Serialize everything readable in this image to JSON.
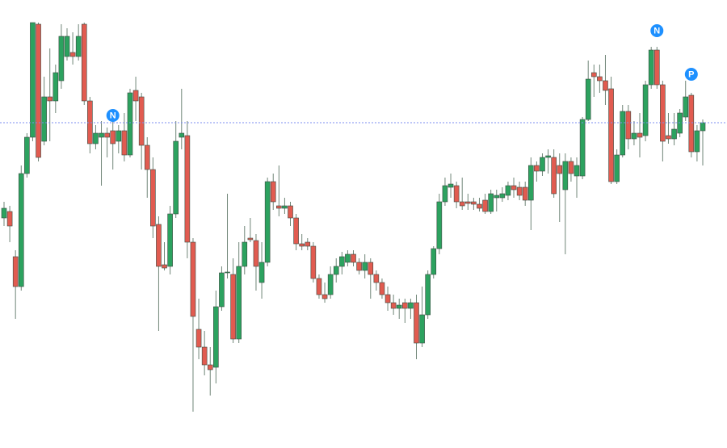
{
  "chart_data": {
    "type": "candlestick",
    "ylim": [
      0,
      555
    ],
    "up_color": "#2ca25f",
    "down_color": "#e15b50",
    "wick_color": "#6f8577",
    "open": [
      285,
      293,
      237,
      200,
      340,
      385,
      525,
      380,
      435,
      430,
      455,
      485,
      490,
      485,
      525,
      430,
      377,
      385,
      390,
      393,
      380,
      393,
      363,
      443,
      435,
      375,
      345,
      277,
      227,
      225,
      290,
      385,
      387,
      255,
      147,
      125,
      103,
      100,
      175,
      217,
      215,
      135,
      225,
      260,
      257,
      205,
      230,
      330,
      300,
      297,
      300,
      285,
      253,
      255,
      250,
      210,
      190,
      190,
      215,
      225,
      230,
      240,
      230,
      220,
      230,
      215,
      205,
      190,
      180,
      173,
      180,
      173,
      180,
      130,
      165,
      215,
      247,
      305,
      323,
      325,
      305,
      305,
      305,
      302,
      307,
      293,
      310,
      310,
      313,
      325,
      323,
      323,
      307,
      350,
      343,
      360,
      360,
      350,
      320,
      355,
      337,
      337,
      407,
      465,
      460,
      455,
      445,
      330,
      363,
      417,
      383,
      390,
      387,
      450,
      493,
      450,
      387,
      383,
      390,
      410,
      437,
      367,
      393
    ],
    "high": [
      305,
      300,
      245,
      350,
      390,
      527,
      527,
      460,
      495,
      475,
      525,
      520,
      515,
      525,
      527,
      435,
      400,
      405,
      397,
      405,
      400,
      415,
      445,
      460,
      440,
      385,
      360,
      287,
      255,
      300,
      405,
      445,
      405,
      260,
      185,
      145,
      125,
      195,
      225,
      315,
      235,
      255,
      275,
      285,
      265,
      255,
      335,
      340,
      350,
      310,
      305,
      290,
      265,
      260,
      255,
      215,
      205,
      225,
      235,
      243,
      245,
      245,
      235,
      240,
      235,
      220,
      210,
      200,
      190,
      185,
      185,
      185,
      190,
      200,
      220,
      250,
      315,
      335,
      340,
      330,
      335,
      315,
      310,
      310,
      315,
      320,
      320,
      323,
      330,
      335,
      330,
      330,
      360,
      355,
      365,
      370,
      370,
      365,
      365,
      360,
      360,
      410,
      480,
      475,
      475,
      487,
      460,
      370,
      425,
      425,
      405,
      415,
      455,
      497,
      497,
      455,
      415,
      415,
      420,
      455,
      440,
      400,
      407
    ],
    "low": [
      275,
      255,
      160,
      195,
      335,
      380,
      355,
      375,
      380,
      415,
      445,
      480,
      475,
      480,
      425,
      365,
      370,
      325,
      360,
      345,
      365,
      355,
      360,
      405,
      345,
      310,
      260,
      145,
      220,
      215,
      285,
      370,
      235,
      45,
      110,
      90,
      65,
      80,
      170,
      210,
      130,
      130,
      215,
      255,
      195,
      185,
      225,
      295,
      287,
      290,
      275,
      245,
      245,
      245,
      205,
      185,
      180,
      185,
      205,
      215,
      225,
      225,
      215,
      210,
      185,
      195,
      185,
      170,
      165,
      160,
      155,
      160,
      110,
      125,
      160,
      210,
      240,
      300,
      310,
      297,
      295,
      295,
      295,
      293,
      290,
      290,
      293,
      305,
      307,
      310,
      307,
      300,
      270,
      330,
      337,
      340,
      310,
      280,
      240,
      330,
      310,
      333,
      405,
      435,
      440,
      425,
      327,
      327,
      360,
      370,
      375,
      360,
      380,
      445,
      445,
      355,
      377,
      375,
      385,
      405,
      360,
      355,
      350
    ],
    "close": [
      297,
      275,
      200,
      340,
      385,
      527,
      360,
      435,
      430,
      465,
      510,
      510,
      485,
      510,
      430,
      377,
      390,
      390,
      385,
      377,
      393,
      363,
      440,
      430,
      375,
      345,
      275,
      225,
      223,
      290,
      380,
      390,
      255,
      163,
      125,
      103,
      97,
      175,
      217,
      218,
      135,
      225,
      255,
      258,
      225,
      230,
      330,
      305,
      297,
      300,
      285,
      253,
      250,
      250,
      210,
      190,
      185,
      215,
      225,
      237,
      240,
      230,
      220,
      230,
      215,
      205,
      190,
      180,
      173,
      177,
      173,
      180,
      130,
      165,
      215,
      247,
      305,
      325,
      327,
      305,
      300,
      303,
      302,
      297,
      293,
      315,
      313,
      315,
      325,
      320,
      313,
      307,
      350,
      343,
      360,
      362,
      315,
      340,
      355,
      340,
      350,
      407,
      457,
      460,
      455,
      443,
      330,
      363,
      417,
      383,
      390,
      385,
      450,
      493,
      450,
      380,
      383,
      395,
      415,
      435,
      367,
      393,
      403
    ],
    "hline": 403,
    "hline_color": "#7b8cf0",
    "marker_color": "#1e90ff",
    "markers": [
      {
        "label": "N",
        "index": 19,
        "value": 412
      },
      {
        "label": "N",
        "index": 114,
        "value": 517
      },
      {
        "label": "P",
        "index": 120,
        "value": 463
      }
    ]
  }
}
